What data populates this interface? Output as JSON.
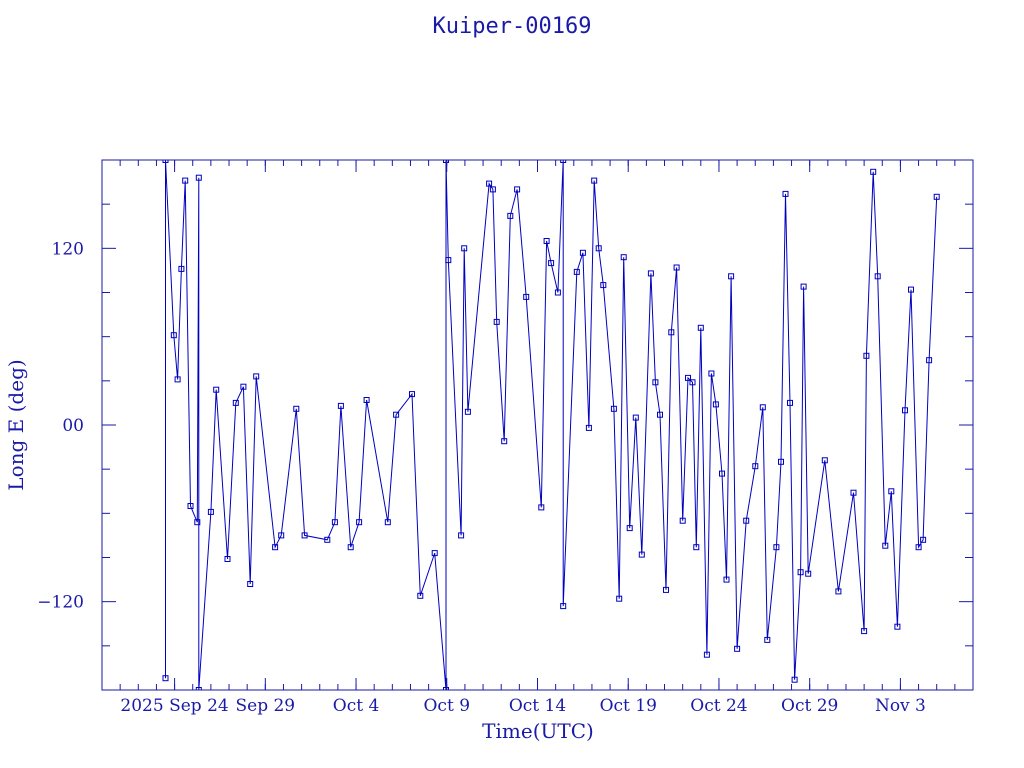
{
  "chart_data": {
    "type": "line",
    "title": "Kuiper-00169",
    "xlabel": "Time(UTC)",
    "ylabel": "Long E (deg)",
    "x_unit": "days",
    "xlim": [
      "2025-09-20",
      "2025-11-07"
    ],
    "ylim": [
      -180,
      180
    ],
    "x_tick_labels": [
      "2025 Sep 24",
      "Sep 29",
      "Oct 4",
      "Oct 9",
      "Oct 14",
      "Oct 19",
      "Oct 24",
      "Oct 29",
      "Nov 3"
    ],
    "x_tick_dates": [
      "2025-09-24",
      "2025-09-29",
      "2025-10-04",
      "2025-10-09",
      "2025-10-14",
      "2025-10-19",
      "2025-10-24",
      "2025-10-29",
      "2025-11-03"
    ],
    "y_tick_labels": [
      "120",
      "00",
      "−120"
    ],
    "y_tick_values": [
      120,
      0,
      -120
    ],
    "marker": "open-square",
    "color": "#0000c0",
    "series": [
      {
        "points": [
          [
            "2025-09-23 12:00",
            -172
          ],
          [
            "2025-09-23 12:00",
            180
          ],
          [
            "2025-09-23 23:00",
            61
          ],
          [
            "2025-09-24 04:00",
            31
          ],
          [
            "2025-09-24 09:00",
            106
          ],
          [
            "2025-09-24 14:00",
            166
          ],
          [
            "2025-09-24 21:00",
            -55
          ],
          [
            "2025-09-25 06:00",
            -66
          ],
          [
            "2025-09-25 08:00",
            168
          ],
          [
            "2025-09-25 08:00",
            -180
          ],
          [
            "2025-09-26 00:00",
            -59
          ],
          [
            "2025-09-26 07:00",
            24
          ],
          [
            "2025-09-26 22:00",
            -91
          ],
          [
            "2025-09-27 09:00",
            15
          ],
          [
            "2025-09-27 19:00",
            26
          ],
          [
            "2025-09-28 04:00",
            -108
          ],
          [
            "2025-09-28 12:00",
            33
          ],
          [
            "2025-09-29 13:00",
            -83
          ],
          [
            "2025-09-29 21:00",
            -75
          ],
          [
            "2025-09-30 17:00",
            11
          ],
          [
            "2025-10-01 04:00",
            -75
          ],
          [
            "2025-10-02 10:00",
            -78
          ],
          [
            "2025-10-02 20:00",
            -66
          ],
          [
            "2025-10-03 04:00",
            13
          ],
          [
            "2025-10-03 17:00",
            -83
          ],
          [
            "2025-10-04 04:00",
            -66
          ],
          [
            "2025-10-04 14:00",
            17
          ],
          [
            "2025-10-05 18:00",
            -66
          ],
          [
            "2025-10-06 05:00",
            7
          ],
          [
            "2025-10-07 02:00",
            21
          ],
          [
            "2025-10-07 13:00",
            -116
          ],
          [
            "2025-10-08 08:00",
            -87
          ],
          [
            "2025-10-08 23:00",
            -180
          ],
          [
            "2025-10-08 23:00",
            180
          ],
          [
            "2025-10-09 02:00",
            112
          ],
          [
            "2025-10-09 19:00",
            -75
          ],
          [
            "2025-10-09 23:00",
            120
          ],
          [
            "2025-10-10 04:00",
            9
          ],
          [
            "2025-10-11 08:00",
            164
          ],
          [
            "2025-10-11 13:00",
            160
          ],
          [
            "2025-10-11 18:00",
            70
          ],
          [
            "2025-10-12 04:00",
            -11
          ],
          [
            "2025-10-12 12:00",
            142
          ],
          [
            "2025-10-12 21:00",
            160
          ],
          [
            "2025-10-13 09:00",
            87
          ],
          [
            "2025-10-14 05:00",
            -56
          ],
          [
            "2025-10-14 12:00",
            125
          ],
          [
            "2025-10-14 18:00",
            110
          ],
          [
            "2025-10-15 03:00",
            90
          ],
          [
            "2025-10-15 10:00",
            180
          ],
          [
            "2025-10-15 10:00",
            -123
          ],
          [
            "2025-10-16 04:00",
            104
          ],
          [
            "2025-10-16 12:00",
            117
          ],
          [
            "2025-10-16 20:00",
            -2
          ],
          [
            "2025-10-17 03:00",
            166
          ],
          [
            "2025-10-17 09:00",
            120
          ],
          [
            "2025-10-17 15:00",
            95
          ],
          [
            "2025-10-18 05:00",
            11
          ],
          [
            "2025-10-18 12:00",
            -118
          ],
          [
            "2025-10-18 18:00",
            114
          ],
          [
            "2025-10-19 02:00",
            -70
          ],
          [
            "2025-10-19 10:00",
            5
          ],
          [
            "2025-10-19 18:00",
            -88
          ],
          [
            "2025-10-20 06:00",
            103
          ],
          [
            "2025-10-20 12:00",
            29
          ],
          [
            "2025-10-20 18:00",
            7
          ],
          [
            "2025-10-21 02:00",
            -112
          ],
          [
            "2025-10-21 09:00",
            63
          ],
          [
            "2025-10-21 16:00",
            107
          ],
          [
            "2025-10-22 00:00",
            -65
          ],
          [
            "2025-10-22 07:00",
            32
          ],
          [
            "2025-10-22 13:00",
            29
          ],
          [
            "2025-10-22 18:00",
            -83
          ],
          [
            "2025-10-23 00:00",
            66
          ],
          [
            "2025-10-23 08:00",
            -156
          ],
          [
            "2025-10-23 14:00",
            35
          ],
          [
            "2025-10-23 20:00",
            14
          ],
          [
            "2025-10-24 04:00",
            -33
          ],
          [
            "2025-10-24 10:00",
            -105
          ],
          [
            "2025-10-24 16:00",
            101
          ],
          [
            "2025-10-25 00:00",
            -152
          ],
          [
            "2025-10-25 12:00",
            -65
          ],
          [
            "2025-10-26 00:00",
            -28
          ],
          [
            "2025-10-26 10:00",
            12
          ],
          [
            "2025-10-26 16:00",
            -146
          ],
          [
            "2025-10-27 04:00",
            -83
          ],
          [
            "2025-10-27 10:00",
            -25
          ],
          [
            "2025-10-27 16:00",
            157
          ],
          [
            "2025-10-27 22:00",
            15
          ],
          [
            "2025-10-28 04:00",
            -173
          ],
          [
            "2025-10-28 12:00",
            -100
          ],
          [
            "2025-10-28 16:00",
            94
          ],
          [
            "2025-10-28 22:00",
            -101
          ],
          [
            "2025-10-29 20:00",
            -24
          ],
          [
            "2025-10-30 14:00",
            -113
          ],
          [
            "2025-10-31 10:00",
            -46
          ],
          [
            "2025-11-01 00:00",
            -140
          ],
          [
            "2025-11-01 03:00",
            47
          ],
          [
            "2025-11-01 12:00",
            172
          ],
          [
            "2025-11-01 18:00",
            101
          ],
          [
            "2025-11-02 04:00",
            -82
          ],
          [
            "2025-11-02 12:00",
            -45
          ],
          [
            "2025-11-02 20:00",
            -137
          ],
          [
            "2025-11-03 06:00",
            10
          ],
          [
            "2025-11-03 14:00",
            92
          ],
          [
            "2025-11-04 00:00",
            -83
          ],
          [
            "2025-11-04 06:00",
            -78
          ],
          [
            "2025-11-04 14:00",
            44
          ],
          [
            "2025-11-05 00:00",
            155
          ]
        ]
      }
    ]
  }
}
